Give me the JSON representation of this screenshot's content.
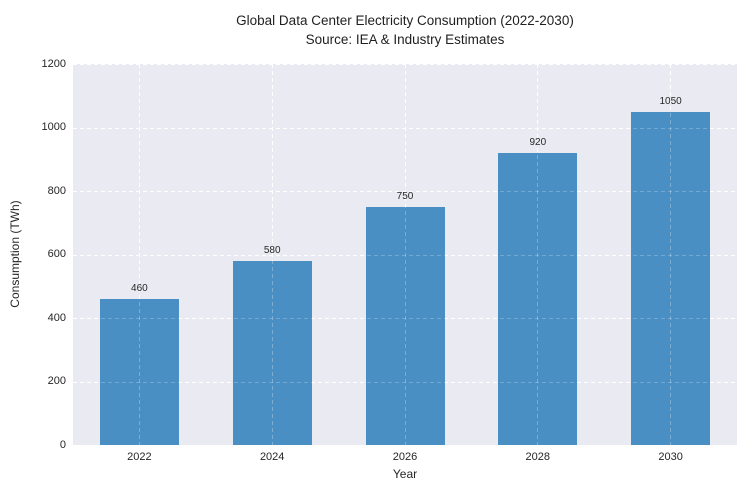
{
  "chart_data": {
    "type": "bar",
    "title": "Global Data Center Electricity Consumption (2022-2030)",
    "subtitle": "Source: IEA & Industry Estimates",
    "categories": [
      "2022",
      "2024",
      "2026",
      "2028",
      "2030"
    ],
    "values": [
      460,
      580,
      750,
      920,
      1050
    ],
    "bar_value_labels": [
      "460",
      "580",
      "750",
      "920",
      "1050"
    ],
    "xlabel": "Year",
    "ylabel": "Consumption (TWh)",
    "ylim": [
      0,
      1200
    ],
    "yticks": [
      0,
      200,
      400,
      600,
      800,
      1000,
      1200
    ],
    "ytick_labels": [
      "0",
      "200",
      "400",
      "600",
      "800",
      "1000",
      "1200"
    ],
    "grid": "white dashed, horizontal and vertical, no spines",
    "legend_position": "none",
    "colors": {
      "bar": "#4a8fc4",
      "plot_background": "#eaebf2",
      "figure_background": "#ffffff",
      "text": "#262626",
      "gridline": "#ffffff"
    }
  }
}
